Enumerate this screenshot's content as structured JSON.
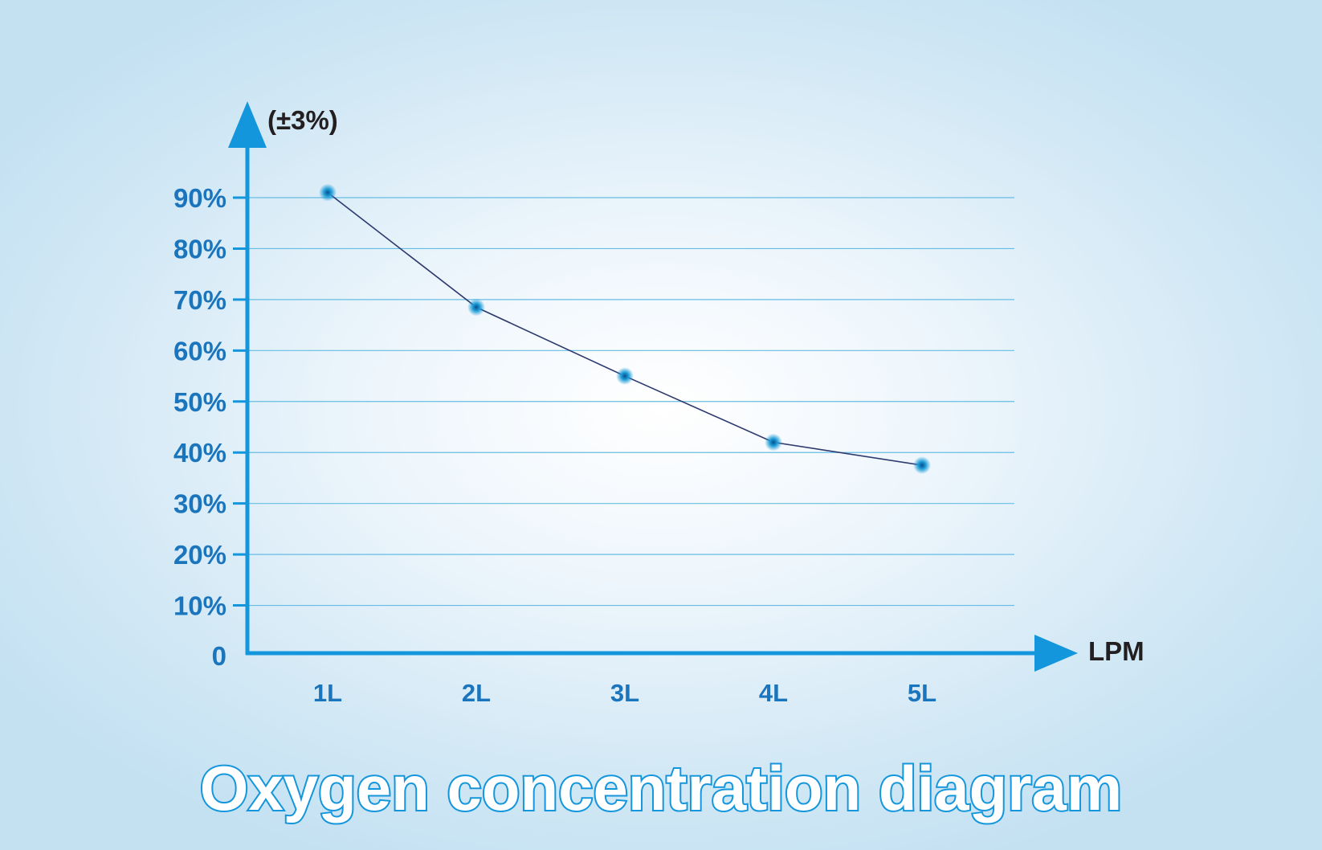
{
  "chart_data": {
    "type": "line",
    "title": "Oxygen concentration diagram",
    "ylabel": "(±3%)",
    "xlabel": "LPM",
    "categories": [
      "1L",
      "2L",
      "3L",
      "4L",
      "5L"
    ],
    "values": [
      91,
      68.5,
      55,
      42,
      37.5
    ],
    "ylim": [
      0,
      100
    ],
    "y_ticks": [
      {
        "value": 0,
        "label": "0"
      },
      {
        "value": 10,
        "label": "10%"
      },
      {
        "value": 20,
        "label": "20%"
      },
      {
        "value": 30,
        "label": "30%"
      },
      {
        "value": 40,
        "label": "40%"
      },
      {
        "value": 50,
        "label": "50%"
      },
      {
        "value": 60,
        "label": "60%"
      },
      {
        "value": 70,
        "label": "70%"
      },
      {
        "value": 80,
        "label": "80%"
      },
      {
        "value": 90,
        "label": "90%"
      }
    ],
    "grid": true,
    "legend": "none"
  },
  "colors": {
    "axis": "#1496dc",
    "grid": "#66bde3",
    "line": "#2e3a6e",
    "marker": "#1a9ad6",
    "tick_label": "#1b75bc",
    "unit_label": "#231f20",
    "title_fill": "#ffffff",
    "title_stroke": "#1496dc"
  }
}
